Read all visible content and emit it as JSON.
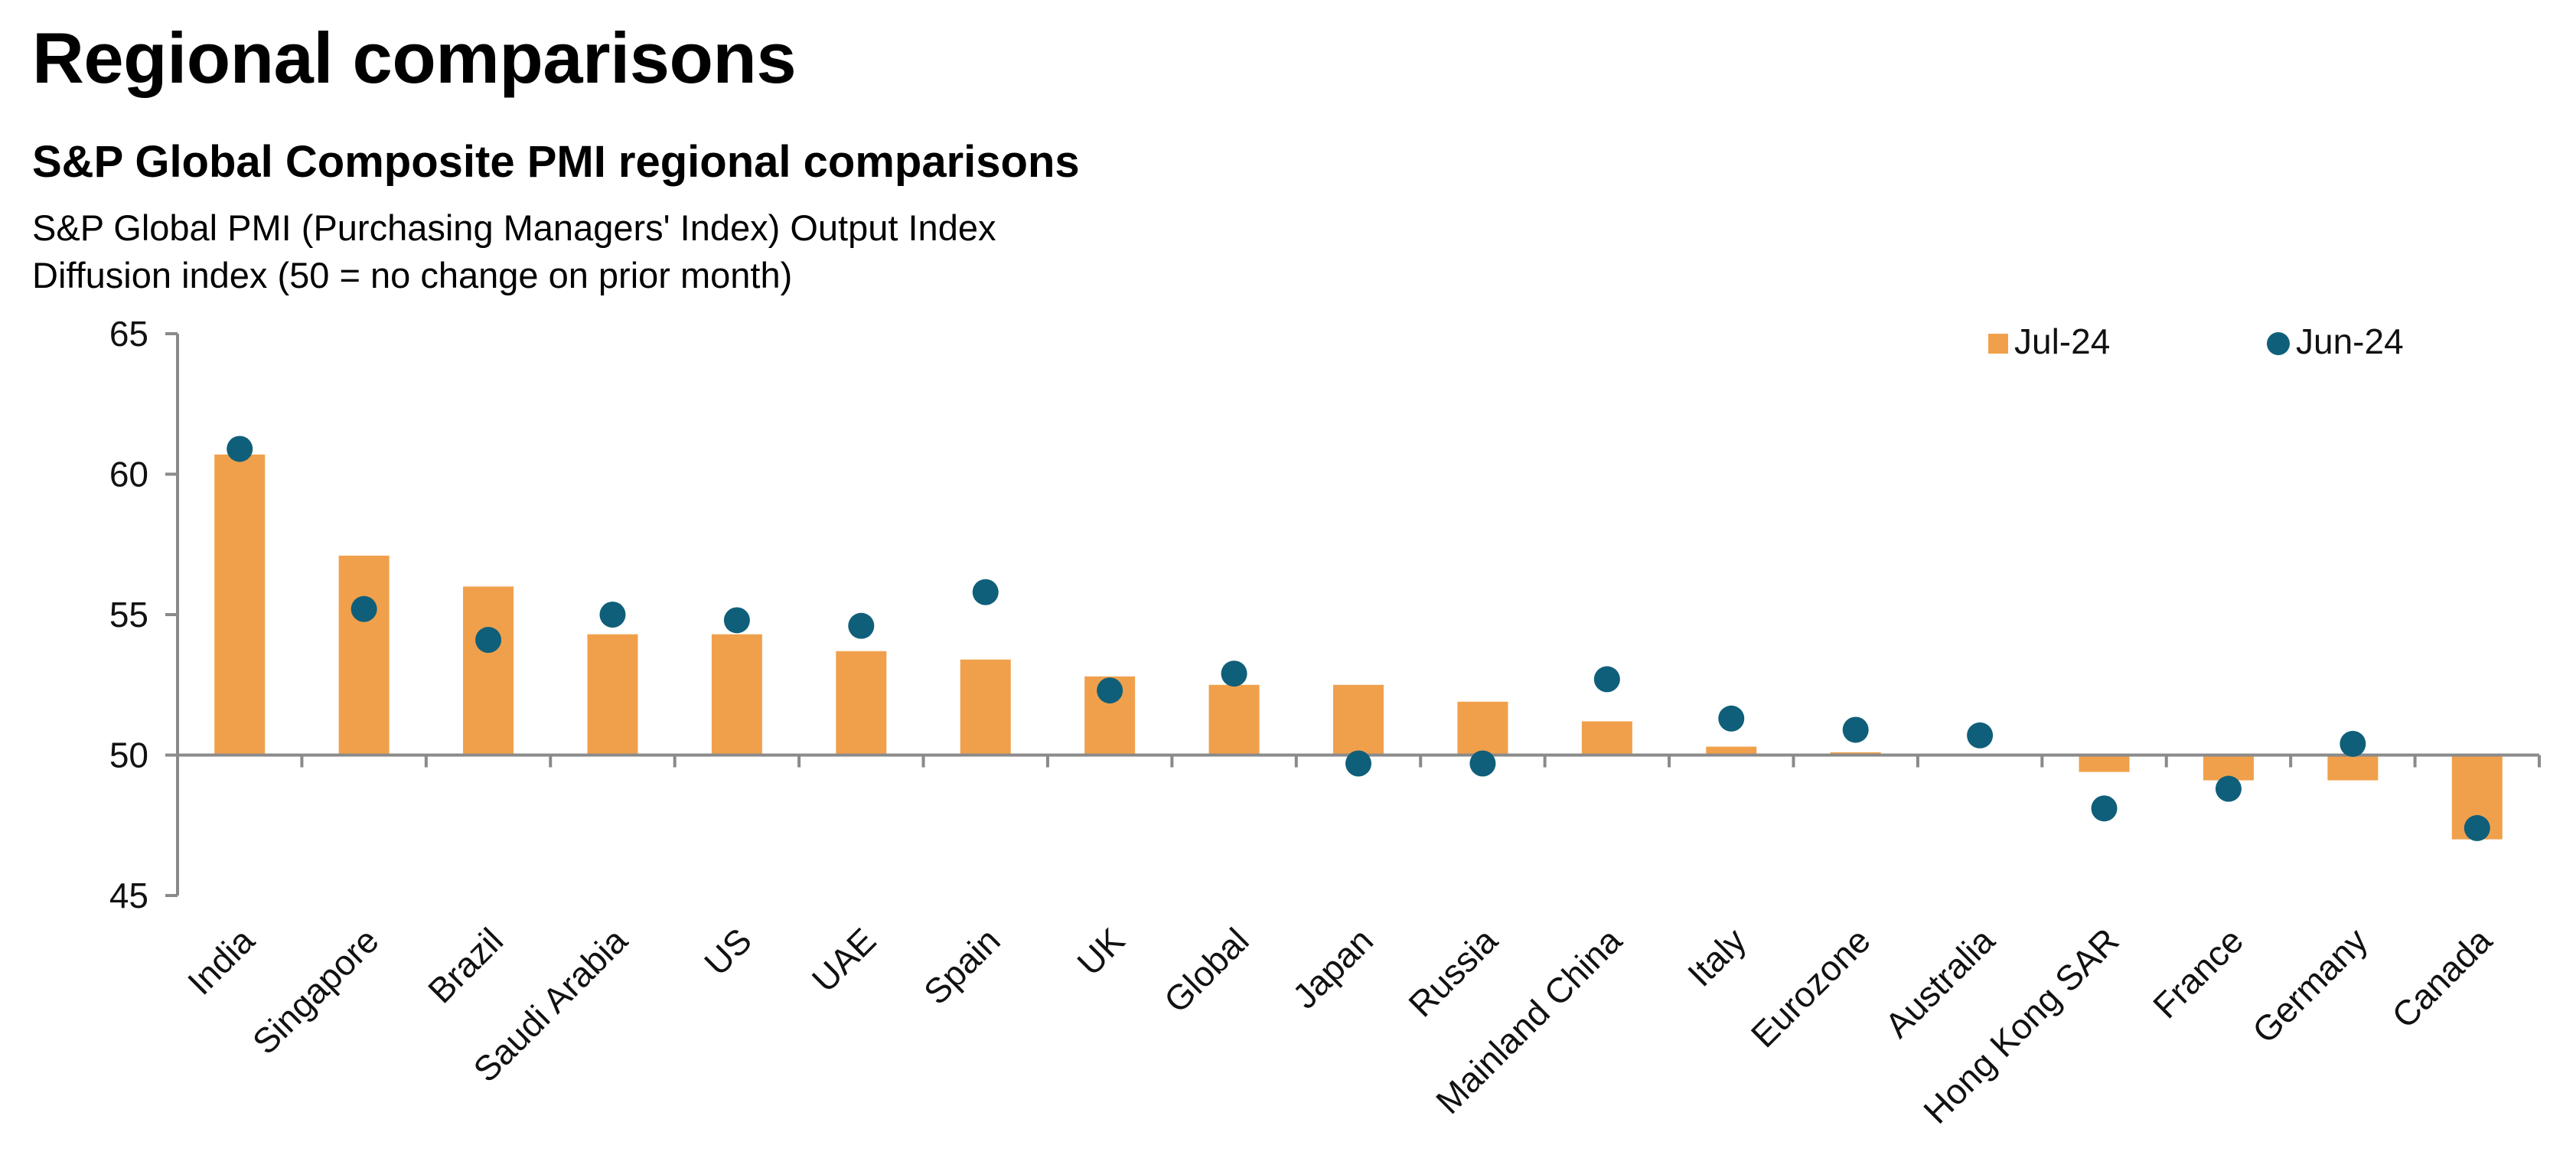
{
  "page_title": "Regional comparisons",
  "chart_data": {
    "type": "bar",
    "title": "S&P Global Composite PMI regional comparisons",
    "subtitle": "S&P Global PMI (Purchasing Managers' Index) Output Index",
    "subtitle2": "Diffusion index (50 = no change on prior month)",
    "xlabel": "",
    "ylabel": "",
    "ylim": [
      45,
      65
    ],
    "yticks": [
      45,
      50,
      55,
      60,
      65
    ],
    "baseline": 50,
    "grid": false,
    "legend_position": "top-right",
    "categories": [
      "India",
      "Singapore",
      "Brazil",
      "Saudi Arabia",
      "US",
      "UAE",
      "Spain",
      "UK",
      "Global",
      "Japan",
      "Russia",
      "Mainland China",
      "Italy",
      "Eurozone",
      "Australia",
      "Hong Kong SAR",
      "France",
      "Germany",
      "Canada"
    ],
    "series": [
      {
        "name": "Jul-24",
        "kind": "bar",
        "color": "#f0a04b",
        "values": [
          60.7,
          57.1,
          56.0,
          54.3,
          54.3,
          53.7,
          53.4,
          52.8,
          52.5,
          52.5,
          51.9,
          51.2,
          50.3,
          50.1,
          50.0,
          49.4,
          49.1,
          49.1,
          47.0
        ]
      },
      {
        "name": "Jun-24",
        "kind": "dot",
        "color": "#0f5f7a",
        "values": [
          60.9,
          55.2,
          54.1,
          55.0,
          54.8,
          54.6,
          55.8,
          52.3,
          52.9,
          49.7,
          49.7,
          52.7,
          51.3,
          50.9,
          50.7,
          48.1,
          48.8,
          50.4,
          47.4
        ]
      }
    ]
  }
}
